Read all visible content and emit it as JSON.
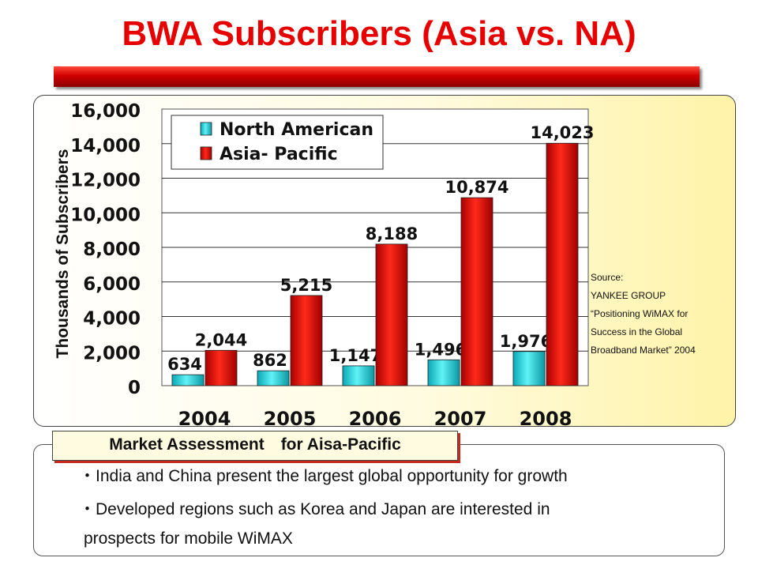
{
  "title": "BWA Subscribers (Asia vs. NA)",
  "chart_data": {
    "type": "bar",
    "categories": [
      "2004",
      "2005",
      "2006",
      "2007",
      "2008"
    ],
    "series": [
      {
        "name": "North American",
        "values": [
          634,
          862,
          1147,
          1496,
          1976
        ],
        "labels": [
          "634",
          "862",
          "1,147",
          "1,496",
          "1,976"
        ],
        "color": "#20d5de"
      },
      {
        "name": "Asia- Pacific",
        "values": [
          2044,
          5215,
          8188,
          10874,
          14023
        ],
        "labels": [
          "2,044",
          "5,215",
          "8,188",
          "10,874",
          "14,023"
        ],
        "color": "#e00000"
      }
    ],
    "ylabel": "Thousands of Subscribers",
    "xlabel": "",
    "ylim": [
      0,
      16000
    ],
    "yticks": [
      0,
      2000,
      4000,
      6000,
      8000,
      10000,
      12000,
      14000,
      16000
    ],
    "ytick_labels": [
      "0",
      "2,000",
      "4,000",
      "6,000",
      "8,000",
      "10,000",
      "12,000",
      "14,000",
      "16,000"
    ],
    "grid": true,
    "legend_position": "top-left"
  },
  "source": {
    "lines": [
      "Source:",
      "YANKEE GROUP",
      "“Positioning WiMAX for",
      "Success in the Global",
      "Broadband Market” 2004"
    ]
  },
  "market": {
    "heading": "Market Assessment　for Aisa-Pacific",
    "bullets": [
      "・India and China present the largest global opportunity for growth",
      "・Developed regions such as Korea and Japan are interested in",
      "prospects for mobile WiMAX"
    ]
  }
}
